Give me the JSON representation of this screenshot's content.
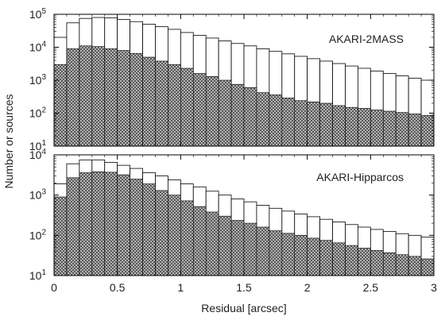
{
  "chart_data": [
    {
      "type": "bar",
      "label": "AKARI-2MASS",
      "ylabel": "Number or sources",
      "xlabel": "",
      "yscale": "log",
      "ylim": [
        10,
        100000
      ],
      "xlim": [
        0,
        3
      ],
      "y_ticks": [
        {
          "base": "10",
          "exp": "1"
        },
        {
          "base": "10",
          "exp": "2"
        },
        {
          "base": "10",
          "exp": "3"
        },
        {
          "base": "10",
          "exp": "4"
        },
        {
          "base": "10",
          "exp": "5"
        }
      ],
      "bin_width": 0.1,
      "x": [
        0.05,
        0.15,
        0.25,
        0.35,
        0.45,
        0.55,
        0.65,
        0.75,
        0.85,
        0.95,
        1.05,
        1.15,
        1.25,
        1.35,
        1.45,
        1.55,
        1.65,
        1.75,
        1.85,
        1.95,
        2.05,
        2.15,
        2.25,
        2.35,
        2.45,
        2.55,
        2.65,
        2.75,
        2.85,
        2.95
      ],
      "series": [
        {
          "values": [
            20000,
            55000,
            75000,
            80000,
            78000,
            70000,
            60000,
            50000,
            42000,
            35000,
            28000,
            23000,
            19000,
            15500,
            13000,
            11000,
            9000,
            7500,
            6300,
            5300,
            4500,
            3800,
            3200,
            2700,
            2300,
            1900,
            1600,
            1350,
            1150,
            1000
          ],
          "fill": "none"
        },
        {
          "values": [
            3000,
            9000,
            11000,
            10500,
            9000,
            8000,
            6500,
            5000,
            3800,
            3000,
            2300,
            1600,
            1300,
            1000,
            750,
            600,
            420,
            360,
            290,
            240,
            220,
            200,
            170,
            150,
            140,
            125,
            115,
            105,
            95,
            85
          ],
          "fill": "crosshatch"
        }
      ]
    },
    {
      "type": "bar",
      "label": "AKARI-Hipparcos",
      "ylabel": "Number or sources",
      "xlabel": "Residual [arcsec]",
      "yscale": "log",
      "ylim": [
        10,
        10000
      ],
      "xlim": [
        0,
        3
      ],
      "y_ticks": [
        {
          "base": "10",
          "exp": "1"
        },
        {
          "base": "10",
          "exp": "2"
        },
        {
          "base": "10",
          "exp": "3"
        },
        {
          "base": "10",
          "exp": "4"
        }
      ],
      "x_ticks": [
        "0",
        "0.5",
        "1",
        "1.5",
        "2",
        "2.5",
        "3"
      ],
      "x_tick_values": [
        0,
        0.5,
        1,
        1.5,
        2,
        2.5,
        3
      ],
      "bin_width": 0.1,
      "x": [
        0.05,
        0.15,
        0.25,
        0.35,
        0.45,
        0.55,
        0.65,
        0.75,
        0.85,
        0.95,
        1.05,
        1.15,
        1.25,
        1.35,
        1.45,
        1.55,
        1.65,
        1.75,
        1.85,
        1.95,
        2.05,
        2.15,
        2.25,
        2.35,
        2.45,
        2.55,
        2.65,
        2.75,
        2.85,
        2.95
      ],
      "series": [
        {
          "values": [
            1900,
            6000,
            7500,
            7500,
            6500,
            5500,
            4600,
            3600,
            3000,
            2400,
            1900,
            1600,
            1250,
            1000,
            800,
            680,
            560,
            470,
            400,
            340,
            290,
            250,
            215,
            185,
            160,
            140,
            125,
            110,
            100,
            90
          ],
          "fill": "none"
        },
        {
          "values": [
            900,
            2700,
            3600,
            3800,
            3700,
            3200,
            2500,
            1900,
            1300,
            1000,
            720,
            520,
            380,
            300,
            235,
            200,
            160,
            130,
            112,
            100,
            85,
            75,
            65,
            56,
            48,
            42,
            37,
            33,
            30,
            26
          ],
          "fill": "crosshatch"
        }
      ]
    }
  ]
}
